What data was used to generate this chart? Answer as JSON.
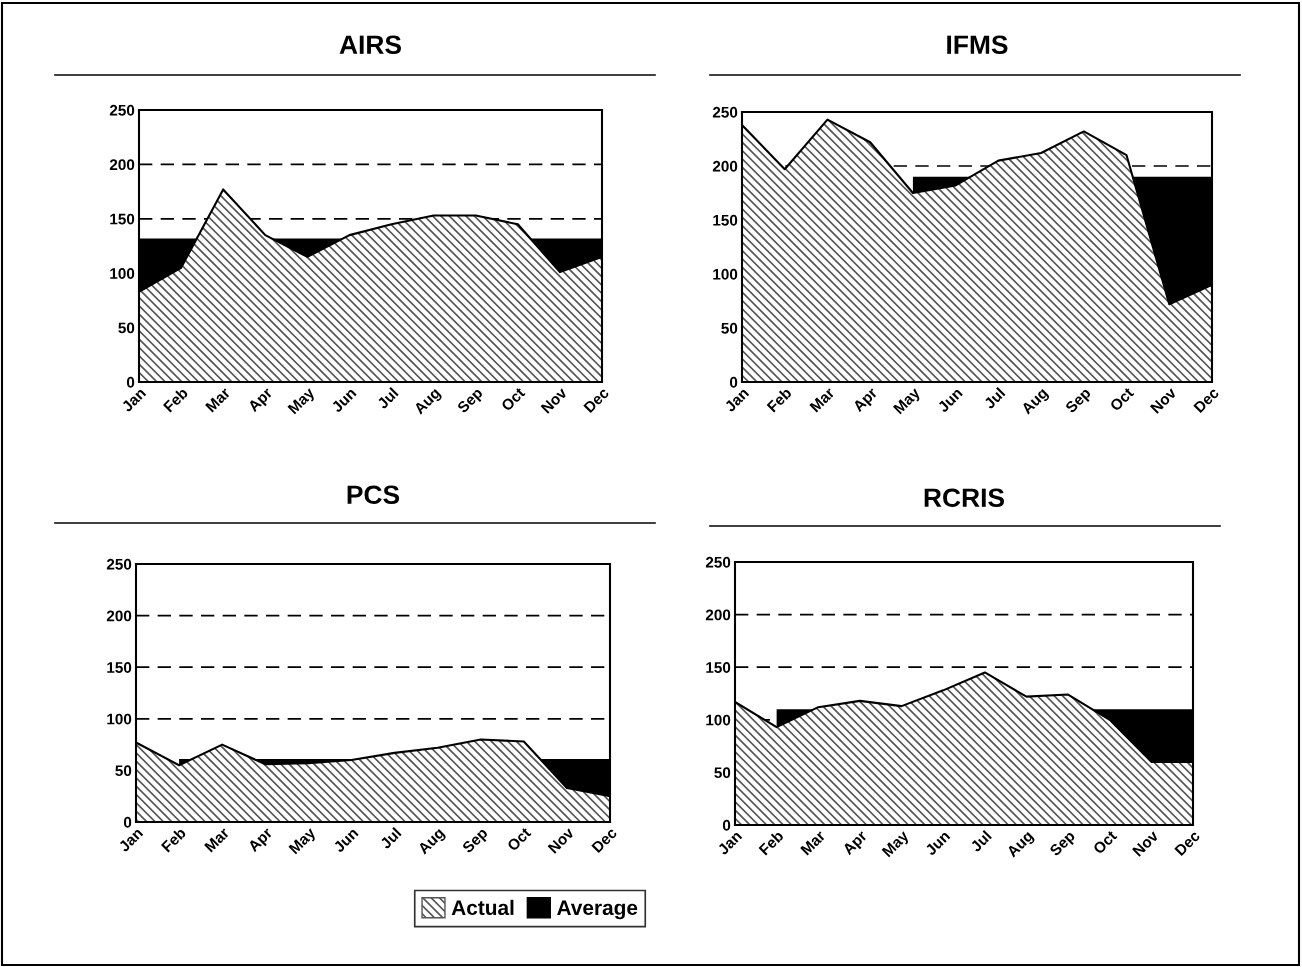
{
  "chart_data": [
    {
      "type": "area",
      "title": "AIRS",
      "categories": [
        "Jan",
        "Feb",
        "Mar",
        "Apr",
        "May",
        "Jun",
        "Jul",
        "Aug",
        "Sep",
        "Oct",
        "Nov",
        "Dec"
      ],
      "ylim": [
        0,
        250
      ],
      "yticks": [
        0,
        50,
        100,
        150,
        200,
        250
      ],
      "grid": "y",
      "line_style": "dashed",
      "legend": "bottom",
      "series": [
        {
          "name": "Actual",
          "color": "#555555",
          "values": [
            83,
            105,
            177,
            135,
            115,
            135,
            145,
            153,
            153,
            145,
            101,
            115
          ]
        },
        {
          "name": "Average",
          "color": "#000000",
          "values": [
            132,
            132,
            null,
            132,
            132,
            132,
            null,
            null,
            null,
            null,
            132,
            132
          ]
        }
      ]
    },
    {
      "type": "area",
      "title": "IFMS",
      "categories": [
        "Jan",
        "Feb",
        "Mar",
        "Apr",
        "May",
        "Jun",
        "Jul",
        "Aug",
        "Sep",
        "Oct",
        "Nov",
        "Dec"
      ],
      "ylim": [
        0,
        250
      ],
      "yticks": [
        0,
        50,
        100,
        150,
        200,
        250
      ],
      "grid": "y",
      "line_style": "dashed",
      "series": [
        {
          "color": "#555555",
          "values": [
            238,
            197,
            243,
            222,
            175,
            182,
            205,
            212,
            232,
            210,
            72,
            90
          ]
        },
        {
          "color": "#000000",
          "values": [
            null,
            null,
            null,
            null,
            190,
            190,
            null,
            null,
            null,
            null,
            190,
            190
          ]
        }
      ]
    },
    {
      "type": "area",
      "title": "PCS",
      "categories": [
        "Jan",
        "Feb",
        "Mar",
        "Apr",
        "May",
        "Jun",
        "Jul",
        "Aug",
        "Sep",
        "Oct",
        "Nov",
        "Dec"
      ],
      "ylim": [
        0,
        250
      ],
      "yticks": [
        0,
        50,
        100,
        150,
        200,
        250
      ],
      "grid": "y",
      "line_style": "dashed",
      "series": [
        {
          "color": "#555555",
          "values": [
            77,
            55,
            75,
            56,
            57,
            60,
            67,
            72,
            80,
            78,
            33,
            25
          ]
        },
        {
          "color": "#000000",
          "values": [
            null,
            61,
            null,
            61,
            61,
            61,
            null,
            null,
            null,
            null,
            61,
            61
          ]
        }
      ]
    },
    {
      "type": "area",
      "title": "RCRIS",
      "categories": [
        "Jan",
        "Feb",
        "Mar",
        "Apr",
        "May",
        "Jun",
        "Jul",
        "Aug",
        "Sep",
        "Oct",
        "Nov",
        "Dec"
      ],
      "ylim": [
        0,
        250
      ],
      "yticks": [
        0,
        50,
        100,
        150,
        200,
        250
      ],
      "grid": "y",
      "line_style": "dashed",
      "series": [
        {
          "color": "#555555",
          "values": [
            117,
            93,
            112,
            118,
            113,
            128,
            145,
            122,
            124,
            100,
            60,
            60
          ]
        },
        {
          "color": "#000000",
          "values": [
            null,
            110,
            110,
            null,
            null,
            null,
            null,
            null,
            null,
            110,
            110,
            110
          ]
        }
      ]
    }
  ]
}
